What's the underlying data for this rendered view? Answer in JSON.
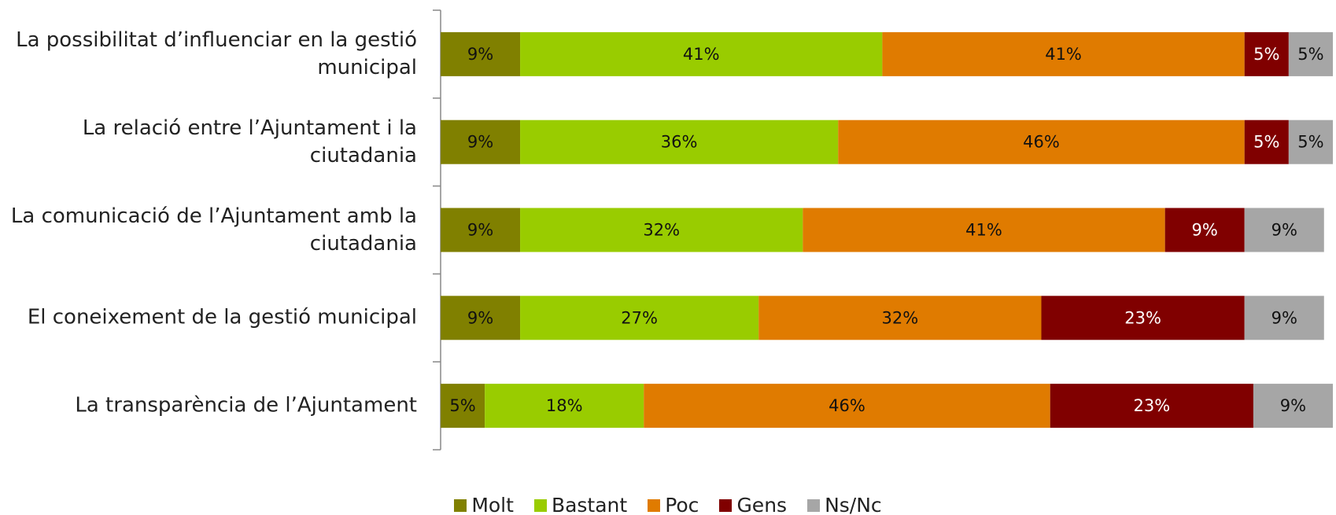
{
  "chart_data": {
    "type": "stacked-bar-horizontal",
    "categories": [
      "La possibilitat d’influenciar en la gestió municipal",
      "La relació entre l’Ajuntament i la ciutadania",
      "La comunicació de l’Ajuntament amb la ciutadania",
      "El coneixement de la gestió municipal",
      "La transparència de l’Ajuntament"
    ],
    "series": [
      {
        "name": "Molt",
        "color": "#808000",
        "values": [
          9,
          9,
          9,
          9,
          5
        ],
        "value_labels": [
          "9%",
          "9%",
          "9%",
          "9%",
          "5%"
        ]
      },
      {
        "name": "Bastant",
        "color": "#99cc00",
        "values": [
          41,
          36,
          32,
          27,
          18
        ],
        "value_labels": [
          "41%",
          "36%",
          "32%",
          "27%",
          "18%"
        ]
      },
      {
        "name": "Poc",
        "color": "#e07b00",
        "values": [
          41,
          46,
          41,
          32,
          46
        ],
        "value_labels": [
          "41%",
          "46%",
          "41%",
          "32%",
          "46%"
        ]
      },
      {
        "name": "Gens",
        "color": "#800000",
        "values": [
          5,
          5,
          9,
          23,
          23
        ],
        "value_labels": [
          "5%",
          "5%",
          "9%",
          "23%",
          "23%"
        ]
      },
      {
        "name": "Ns/Nc",
        "color": "#a6a6a6",
        "values": [
          5,
          5,
          9,
          9,
          9
        ],
        "value_labels": [
          "5%",
          "5%",
          "9%",
          "9%",
          "9%"
        ]
      }
    ],
    "legend": "bottom"
  }
}
